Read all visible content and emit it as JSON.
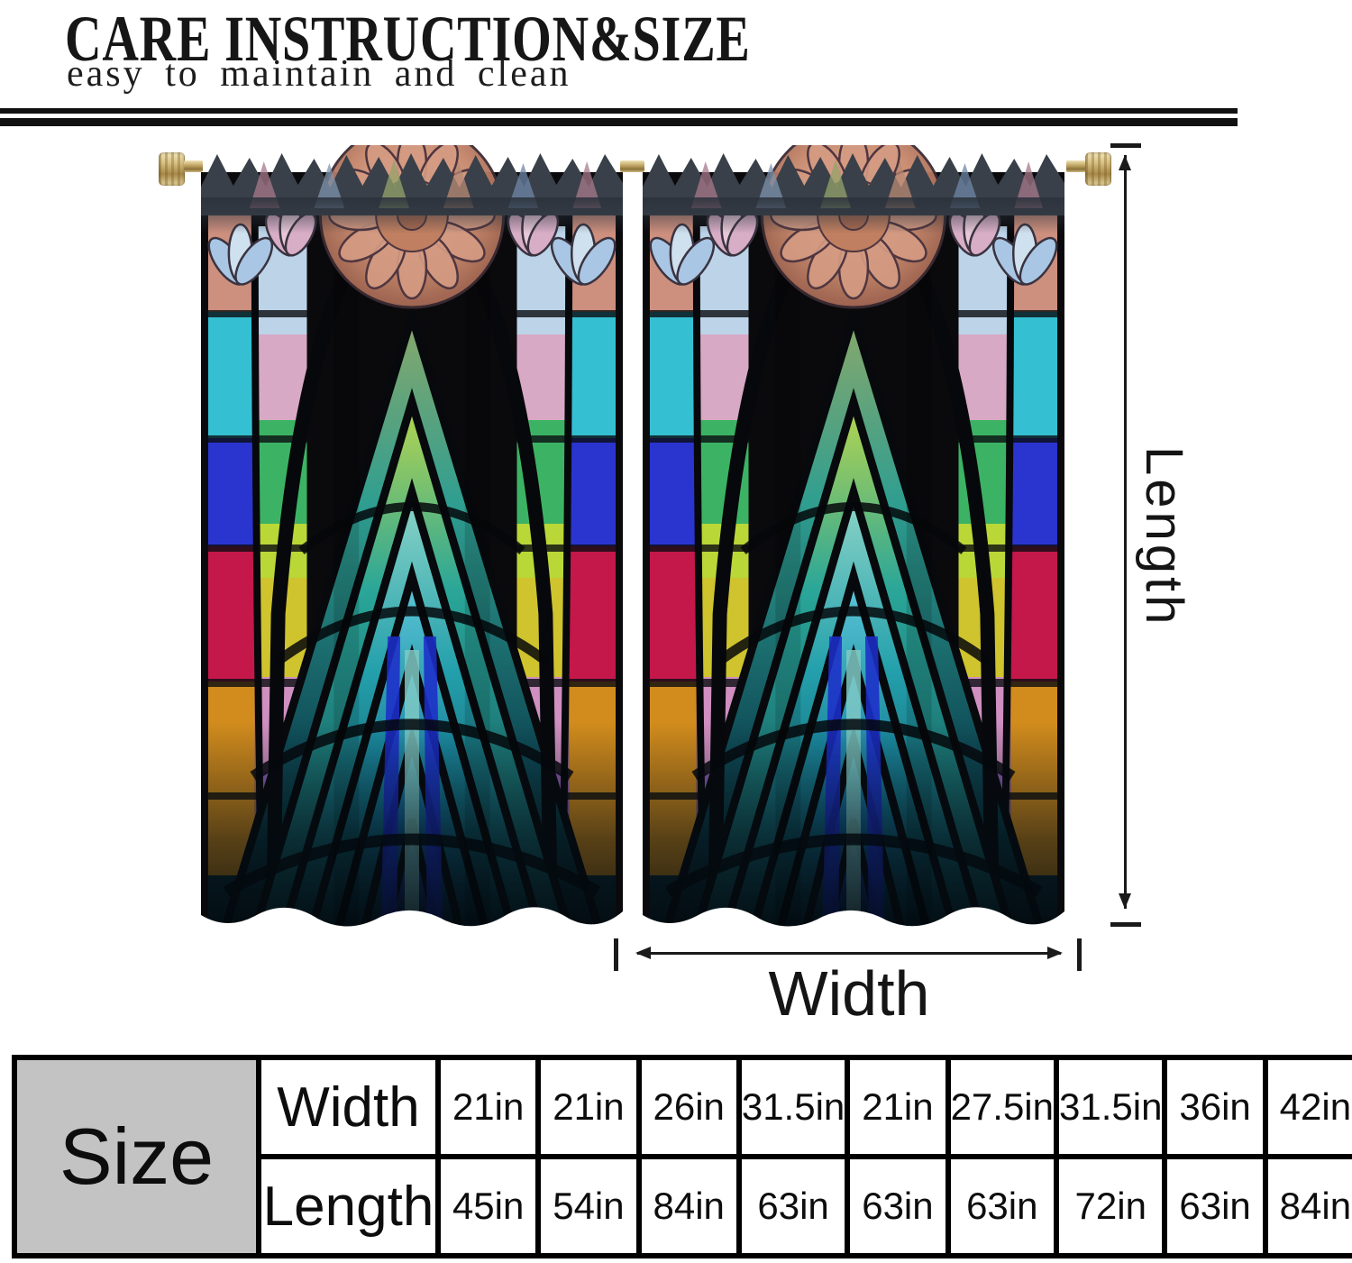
{
  "header": {
    "title": "CARE INSTRUCTION&SIZE",
    "subtitle": "easy to maintain and clean"
  },
  "dimension_labels": {
    "length": "Length",
    "width": "Width"
  },
  "size_table": {
    "corner_label": "Size",
    "rows": [
      {
        "label": "Width",
        "values": [
          "21in",
          "21in",
          "26in",
          "31.5in",
          "21in",
          "27.5in",
          "31.5in",
          "36in",
          "42in"
        ]
      },
      {
        "label": "Length",
        "values": [
          "45in",
          "54in",
          "84in",
          "63in",
          "63in",
          "63in",
          "72in",
          "63in",
          "84in"
        ]
      }
    ]
  },
  "scene": {
    "items": [
      "curtain-rod",
      "left-curtain-panel",
      "right-curtain-panel"
    ],
    "artwork_style": "stained-glass art deco fan pattern"
  },
  "colors": {
    "rod_gold": "#d9c285",
    "table_corner_bg": "#c3c3c3",
    "line_color": "#1a1a1a",
    "curtain_palette": [
      "#0a0a0c",
      "#35bfd2",
      "#2a35cf",
      "#c4174a",
      "#d28c1d",
      "#cfc32e",
      "#3cb364",
      "#b9d737",
      "#8f5fb3",
      "#d8a9c4",
      "#cd8f7e",
      "#1d2ec9",
      "#0d2f3a"
    ]
  }
}
